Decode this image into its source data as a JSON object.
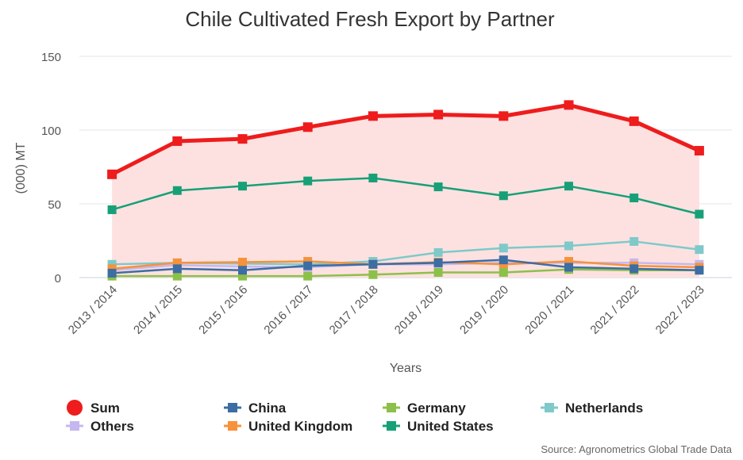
{
  "chart_data": {
    "type": "line",
    "title": "Chile Cultivated Fresh Export by Partner",
    "xlabel": "Years",
    "ylabel": "(000) MT",
    "ylim": [
      0,
      150
    ],
    "yticks": [
      0,
      50,
      100,
      150
    ],
    "grid": true,
    "legend_position": "bottom",
    "source": "Source: Agronometrics Global Trade Data",
    "categories": [
      "2013 / 2014",
      "2014 / 2015",
      "2015 / 2016",
      "2016 / 2017",
      "2017 / 2018",
      "2018 / 2019",
      "2019 / 2020",
      "2020 / 2021",
      "2021 / 2022",
      "2022 / 2023"
    ],
    "series": [
      {
        "name": "Sum",
        "color": "#ee1c1c",
        "values": [
          70,
          92.5,
          94,
          102,
          109.5,
          110.5,
          109.5,
          117,
          106,
          86
        ],
        "area": true
      },
      {
        "name": "China",
        "color": "#3c6da3",
        "values": [
          3,
          6,
          5,
          8,
          9,
          10,
          12,
          7,
          6,
          5
        ]
      },
      {
        "name": "Germany",
        "color": "#8dc04a",
        "values": [
          1,
          1,
          1,
          1,
          2,
          3.5,
          3.5,
          5.5,
          5,
          5
        ]
      },
      {
        "name": "Netherlands",
        "color": "#7fc9c9",
        "values": [
          9,
          10,
          9.5,
          9,
          11,
          17,
          20,
          21.5,
          24.5,
          19
        ]
      },
      {
        "name": "Others",
        "color": "#c5b8f0",
        "values": [
          5,
          8.5,
          7.5,
          7,
          9,
          9,
          10,
          10,
          10,
          9
        ]
      },
      {
        "name": "United Kingdom",
        "color": "#f7923a",
        "values": [
          6,
          10,
          10.5,
          11,
          9,
          10.5,
          9,
          11,
          8,
          7
        ]
      },
      {
        "name": "United States",
        "color": "#17a077",
        "values": [
          46,
          59,
          62,
          65.5,
          67.5,
          61.5,
          55.5,
          62,
          54,
          43
        ]
      }
    ]
  }
}
